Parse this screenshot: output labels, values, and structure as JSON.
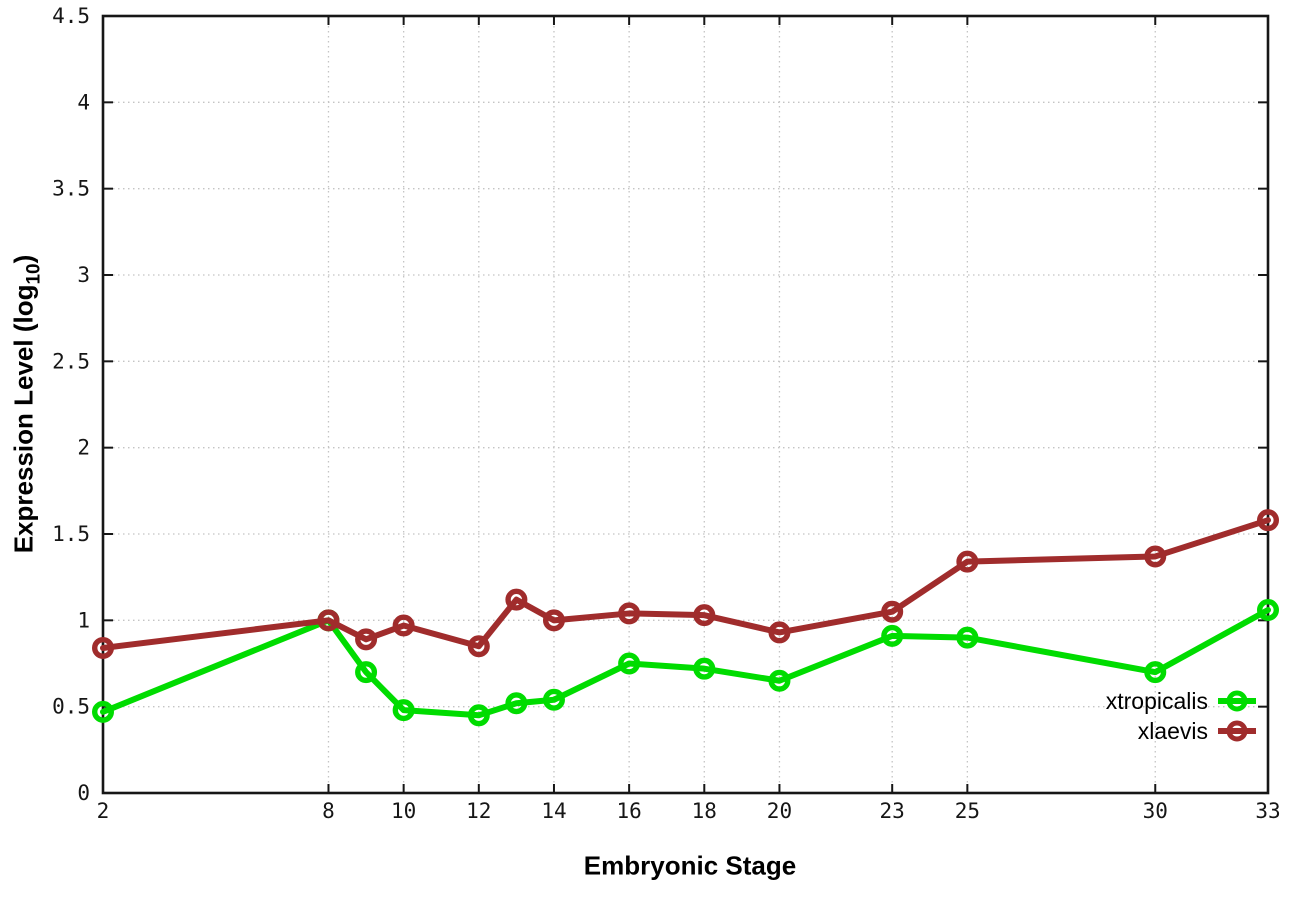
{
  "chart_data": {
    "type": "line",
    "title": "",
    "xlabel": "Embryonic Stage",
    "ylabel": "Expression Level (log10)",
    "ylabel_parts": {
      "prefix": "Expression Level (log",
      "sub": "10",
      "suffix": ")"
    },
    "x": [
      2,
      8,
      9,
      10,
      12,
      13,
      14,
      16,
      18,
      20,
      23,
      25,
      30,
      33
    ],
    "series": [
      {
        "name": "xtropicalis",
        "color": "#00dc00",
        "values": [
          0.47,
          1.0,
          0.7,
          0.48,
          0.45,
          0.52,
          0.54,
          0.75,
          0.72,
          0.65,
          0.91,
          0.9,
          0.7,
          1.06
        ]
      },
      {
        "name": "xlaevis",
        "color": "#a02c2c",
        "values": [
          0.84,
          1.0,
          0.89,
          0.97,
          0.85,
          1.12,
          1.0,
          1.04,
          1.03,
          0.93,
          1.05,
          1.34,
          1.37,
          1.58
        ]
      }
    ],
    "xlim": [
      2,
      33
    ],
    "ylim": [
      0,
      4.5
    ],
    "xticks": [
      2,
      8,
      10,
      12,
      14,
      16,
      18,
      20,
      23,
      25,
      30,
      33
    ],
    "yticks": [
      0,
      0.5,
      1,
      1.5,
      2,
      2.5,
      3,
      3.5,
      4,
      4.5
    ],
    "grid": true,
    "grid_color": "#c4c4c4",
    "axis_color": "#161616",
    "background": "#ffffff",
    "legend_position": "inside-bottom-right"
  }
}
